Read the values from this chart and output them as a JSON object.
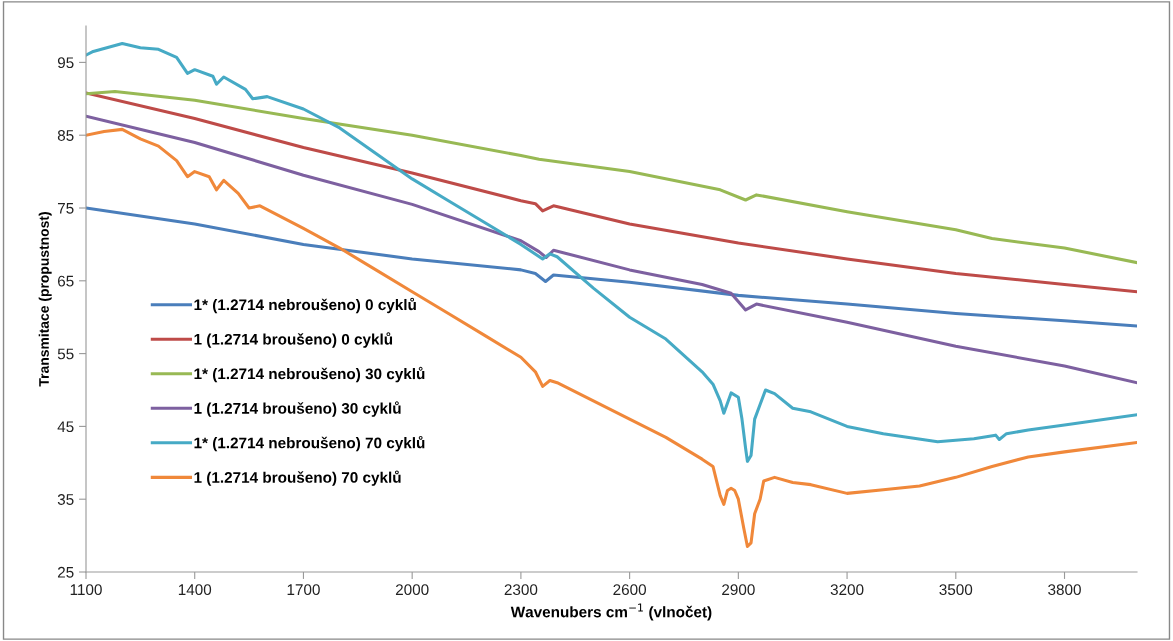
{
  "chart_data": {
    "type": "line",
    "xlabel": "Wavenubers cm$^{−1}$ (vlnočet)",
    "ylabel": "Transmitace (propustnost)",
    "xlim": [
      1100,
      4000
    ],
    "xticks": [
      1100,
      1400,
      1700,
      2000,
      2300,
      2600,
      2900,
      3200,
      3500,
      3800
    ],
    "ylim": [
      25,
      100
    ],
    "yticks": [
      25,
      35,
      45,
      55,
      65,
      75,
      85,
      95
    ],
    "grid": false,
    "legend": "left",
    "marker": "none",
    "line_style": "solid",
    "series": [
      {
        "name": "1* (1.2714 nebroušeno) 0 cyklů",
        "color": "#4a7ebb",
        "x": [
          1100,
          1400,
          1700,
          2000,
          2300,
          2340,
          2368,
          2390,
          2600,
          2900,
          3200,
          3500,
          3800,
          4000
        ],
        "values": [
          75,
          72.8,
          70,
          68,
          66.5,
          66,
          64.9,
          65.8,
          64.8,
          63,
          61.8,
          60.5,
          59.5,
          58.8
        ]
      },
      {
        "name": "1 (1.2714 broušeno) 0 cyklů",
        "color": "#be4b48",
        "x": [
          1100,
          1400,
          1700,
          2000,
          2300,
          2340,
          2360,
          2390,
          2600,
          2900,
          3200,
          3500,
          3800,
          4000
        ],
        "values": [
          90.8,
          87.3,
          83.3,
          79.8,
          76,
          75.6,
          74.6,
          75.3,
          72.8,
          70.2,
          68,
          66,
          64.5,
          63.5
        ]
      },
      {
        "name": "1* (1.2714 nebroušeno) 30 cyklů",
        "color": "#98b954",
        "x": [
          1100,
          1180,
          1400,
          1700,
          2000,
          2300,
          2350,
          2600,
          2850,
          2920,
          2950,
          3200,
          3500,
          3600,
          3800,
          4000
        ],
        "values": [
          90.7,
          91,
          89.8,
          87.3,
          85,
          82.2,
          81.7,
          80,
          77.5,
          76.1,
          76.8,
          74.5,
          72,
          70.8,
          69.5,
          67.5
        ]
      },
      {
        "name": "1 (1.2714 broušeno) 30 cyklů",
        "color": "#7d60a0",
        "x": [
          1100,
          1400,
          1700,
          2000,
          2300,
          2350,
          2370,
          2390,
          2600,
          2800,
          2880,
          2920,
          2950,
          3200,
          3500,
          3800,
          4000
        ],
        "values": [
          87.6,
          84,
          79.5,
          75.5,
          70.5,
          69,
          68.2,
          69.2,
          66.5,
          64.5,
          63.3,
          61,
          61.8,
          59.3,
          56,
          53.3,
          51
        ]
      },
      {
        "name": "1* (1.2714 nebroušeno) 70 cyklů",
        "color": "#46aac5",
        "x": [
          1100,
          1120,
          1200,
          1250,
          1300,
          1350,
          1380,
          1400,
          1450,
          1460,
          1480,
          1540,
          1560,
          1600,
          1700,
          1800,
          1900,
          2000,
          2100,
          2200,
          2300,
          2360,
          2380,
          2400,
          2500,
          2600,
          2700,
          2800,
          2830,
          2850,
          2860,
          2880,
          2900,
          2910,
          2920,
          2925,
          2935,
          2945,
          2960,
          2975,
          3000,
          3050,
          3100,
          3200,
          3300,
          3450,
          3550,
          3610,
          3620,
          3640,
          3700,
          3800,
          4000
        ],
        "values": [
          96,
          96.5,
          97.6,
          97,
          96.8,
          95.7,
          93.5,
          94,
          93.1,
          92,
          93,
          91.3,
          90,
          90.3,
          88.6,
          86,
          82.5,
          79,
          76,
          73,
          70,
          68,
          68.7,
          68.3,
          64,
          60,
          57,
          52.5,
          50.8,
          48.5,
          46.8,
          49.6,
          49,
          46,
          42,
          40.2,
          41,
          46,
          48,
          50,
          49.5,
          47.5,
          47,
          45,
          44,
          42.9,
          43.3,
          43.8,
          43.2,
          44,
          44.5,
          45.2,
          46.6
        ]
      },
      {
        "name": "1 (1.2714 broušeno) 70 cyklů",
        "color": "#f0883a",
        "x": [
          1100,
          1150,
          1200,
          1250,
          1300,
          1350,
          1380,
          1400,
          1440,
          1460,
          1480,
          1520,
          1550,
          1580,
          1700,
          1800,
          1900,
          2000,
          2100,
          2200,
          2300,
          2340,
          2360,
          2380,
          2400,
          2500,
          2600,
          2700,
          2800,
          2830,
          2850,
          2860,
          2870,
          2880,
          2890,
          2900,
          2915,
          2925,
          2935,
          2945,
          2960,
          2970,
          3000,
          3050,
          3100,
          3200,
          3300,
          3400,
          3500,
          3600,
          3700,
          3800,
          4000
        ],
        "values": [
          85,
          85.5,
          85.8,
          84.5,
          83.5,
          81.5,
          79.3,
          80,
          79.3,
          77.5,
          78.8,
          77,
          75,
          75.3,
          72.2,
          69.5,
          66.5,
          63.5,
          60.5,
          57.5,
          54.5,
          52.5,
          50.5,
          51.3,
          51,
          48.5,
          46,
          43.5,
          40.5,
          39.5,
          35.5,
          34.3,
          36.2,
          36.5,
          36.2,
          35,
          31,
          28.5,
          29,
          33,
          35,
          37.5,
          38,
          37.3,
          37,
          35.8,
          36.3,
          36.8,
          38,
          39.5,
          40.8,
          41.5,
          42.8
        ]
      }
    ]
  }
}
